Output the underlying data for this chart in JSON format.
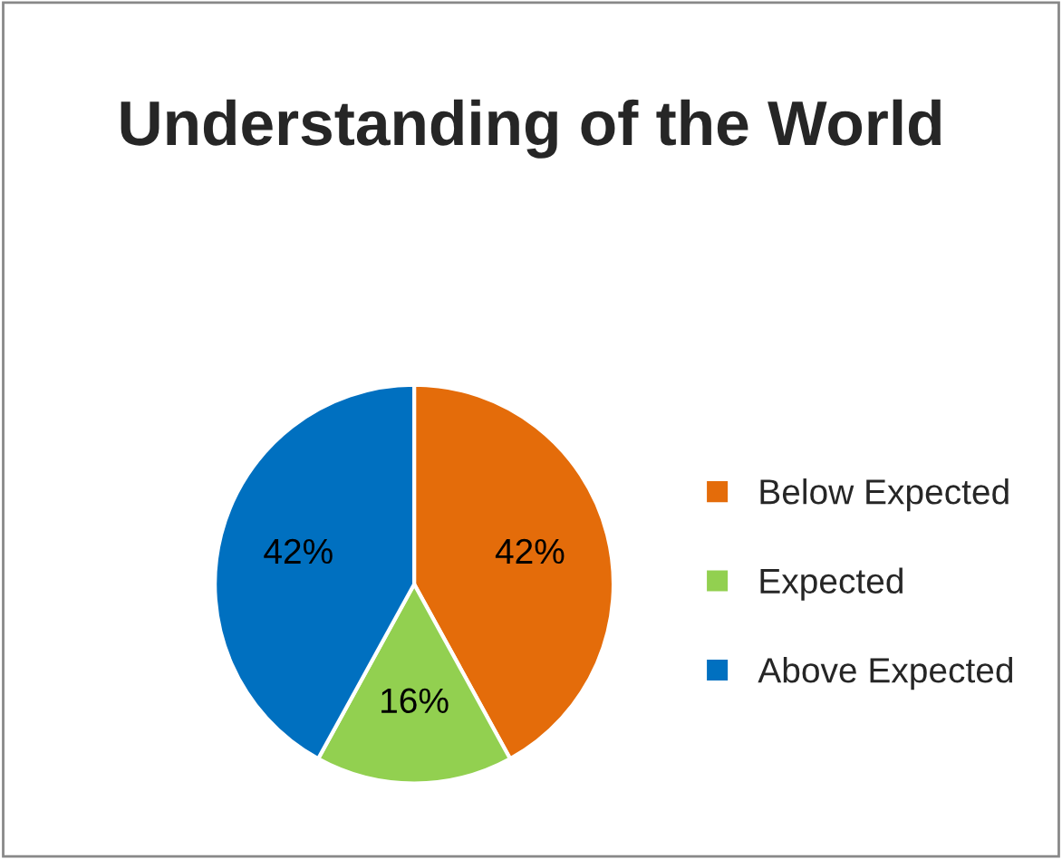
{
  "chart_data": {
    "type": "pie",
    "title": "Understanding of the World",
    "categories": [
      "Below Expected",
      "Expected",
      "Above Expected"
    ],
    "values": [
      42,
      16,
      42
    ],
    "value_labels": [
      "42%",
      "16%",
      "42%"
    ],
    "colors": [
      "#e46c0a",
      "#92d050",
      "#0070c0"
    ],
    "legend": "right"
  }
}
